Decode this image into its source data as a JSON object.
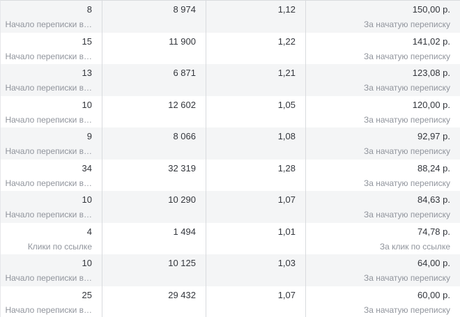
{
  "table": {
    "rows": [
      {
        "result": "8",
        "result_label": "Начало переписки в…",
        "amount": "8 974",
        "ratio": "1,12",
        "cost": "150,00 р.",
        "cost_label": "За начатую переписку"
      },
      {
        "result": "15",
        "result_label": "Начало переписки в…",
        "amount": "11 900",
        "ratio": "1,22",
        "cost": "141,02 р.",
        "cost_label": "За начатую переписку"
      },
      {
        "result": "13",
        "result_label": "Начало переписки в…",
        "amount": "6 871",
        "ratio": "1,21",
        "cost": "123,08 р.",
        "cost_label": "За начатую переписку"
      },
      {
        "result": "10",
        "result_label": "Начало переписки в…",
        "amount": "12 602",
        "ratio": "1,05",
        "cost": "120,00 р.",
        "cost_label": "За начатую переписку"
      },
      {
        "result": "9",
        "result_label": "Начало переписки в…",
        "amount": "8 066",
        "ratio": "1,08",
        "cost": "92,97 р.",
        "cost_label": "За начатую переписку"
      },
      {
        "result": "34",
        "result_label": "Начало переписки в…",
        "amount": "32 319",
        "ratio": "1,28",
        "cost": "88,24 р.",
        "cost_label": "За начатую переписку"
      },
      {
        "result": "10",
        "result_label": "Начало переписки в…",
        "amount": "10 290",
        "ratio": "1,07",
        "cost": "84,63 р.",
        "cost_label": "За начатую переписку"
      },
      {
        "result": "4",
        "result_label": "Клики по ссылке",
        "amount": "1 494",
        "ratio": "1,01",
        "cost": "74,78 р.",
        "cost_label": "За клик по ссылке"
      },
      {
        "result": "10",
        "result_label": "Начало переписки в…",
        "amount": "10 125",
        "ratio": "1,03",
        "cost": "64,00 р.",
        "cost_label": "За начатую переписку"
      },
      {
        "result": "25",
        "result_label": "Начало переписки в…",
        "amount": "29 432",
        "ratio": "1,07",
        "cost": "60,00 р.",
        "cost_label": "За начатую переписку"
      }
    ]
  },
  "colors": {
    "row_alt_bg": "#f4f5f6",
    "row_bg": "#ffffff",
    "divider": "#d9dbde",
    "text_primary": "#33363c",
    "text_secondary": "#90949c"
  }
}
